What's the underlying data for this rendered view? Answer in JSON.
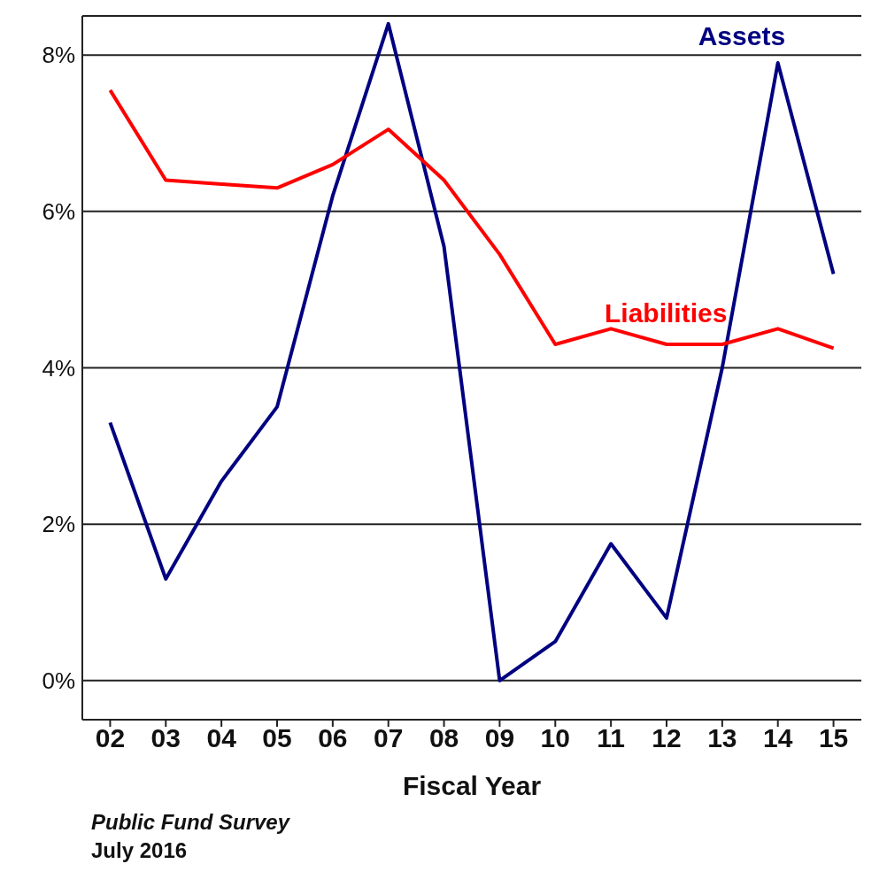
{
  "chart_data": {
    "type": "line",
    "xlabel": "Fiscal Year",
    "categories": [
      "02",
      "03",
      "04",
      "05",
      "06",
      "07",
      "08",
      "09",
      "10",
      "11",
      "12",
      "13",
      "14",
      "15"
    ],
    "series": [
      {
        "name": "Assets",
        "color": "#000080",
        "values": [
          3.3,
          1.3,
          2.55,
          3.5,
          6.2,
          8.4,
          5.55,
          0,
          0.5,
          1.75,
          0.8,
          4.0,
          7.9,
          5.2
        ]
      },
      {
        "name": "Liabilities",
        "color": "#ff0000",
        "values": [
          7.55,
          6.4,
          6.35,
          6.3,
          6.6,
          7.05,
          6.4,
          5.45,
          4.3,
          4.5,
          4.3,
          4.3,
          4.5,
          4.25
        ]
      }
    ],
    "ylim": [
      -0.5,
      8.5
    ],
    "yticks": [
      {
        "value": 0,
        "label": "0%"
      },
      {
        "value": 2,
        "label": "2%"
      },
      {
        "value": 4,
        "label": "4%"
      },
      {
        "value": 6,
        "label": "6%"
      },
      {
        "value": 8,
        "label": "8%"
      }
    ],
    "grid": "y",
    "marker": "none",
    "line_style": "solid",
    "annotations": [
      "Public Fund Survey",
      "July 2016"
    ]
  }
}
